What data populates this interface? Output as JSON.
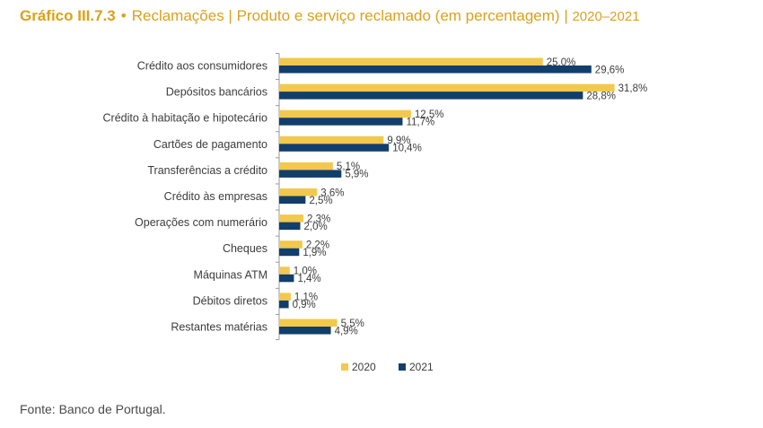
{
  "title": {
    "id": "Gráfico III.7.3",
    "bullet": "•",
    "text": "Reclamações | Produto e serviço reclamado (em percentagem)",
    "separator": "|",
    "years": "2020–2021"
  },
  "source": "Fonte: Banco de Portugal.",
  "colors": {
    "title": "#d9a21b",
    "series_2020": "#f2c94c",
    "series_2021": "#123e6b",
    "axis": "#9a9a9a",
    "text": "#3c3c3c"
  },
  "chart_data": {
    "type": "bar",
    "orientation": "horizontal",
    "categories": [
      "Crédito aos consumidores",
      "Depósitos bancários",
      "Crédito à habitação e hipotecário",
      "Cartões de pagamento",
      "Transferências a crédito",
      "Crédito às empresas",
      "Operações com numerário",
      "Cheques",
      "Máquinas ATM",
      "Débitos diretos",
      "Restantes matérias"
    ],
    "series": [
      {
        "name": "2020",
        "values": [
          25.0,
          31.8,
          12.5,
          9.9,
          5.1,
          3.6,
          2.3,
          2.2,
          1.0,
          1.1,
          5.5
        ],
        "labels": [
          "25,0%",
          "31,8%",
          "12,5%",
          "9,9%",
          "5,1%",
          "3,6%",
          "2,3%",
          "2,2%",
          "1,0%",
          "1,1%",
          "5,5%"
        ]
      },
      {
        "name": "2021",
        "values": [
          29.6,
          28.8,
          11.7,
          10.4,
          5.9,
          2.5,
          2.0,
          1.9,
          1.4,
          0.9,
          4.9
        ],
        "labels": [
          "29,6%",
          "28,8%",
          "11,7%",
          "10,4%",
          "5,9%",
          "2,5%",
          "2,0%",
          "1,9%",
          "1,4%",
          "0,9%",
          "4,9%"
        ]
      }
    ],
    "xlim": [
      0,
      35
    ],
    "grid": false,
    "legend_position": "bottom"
  }
}
